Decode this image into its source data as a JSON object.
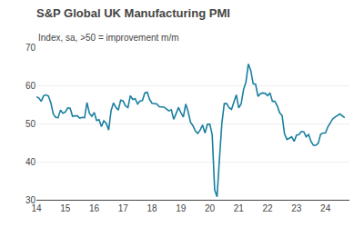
{
  "chart_data": {
    "type": "line",
    "title": "S&P Global UK Manufacturing PMI",
    "subtitle": "Index, sa, >50 = improvement m/m",
    "color": "#1a7fa0",
    "grid": "y",
    "xlim": [
      2014.0,
      2024.83
    ],
    "xticks": [
      {
        "value": 2014,
        "label": "14"
      },
      {
        "value": 2015,
        "label": "15"
      },
      {
        "value": 2016,
        "label": "16"
      },
      {
        "value": 2017,
        "label": "17"
      },
      {
        "value": 2018,
        "label": "18"
      },
      {
        "value": 2019,
        "label": "19"
      },
      {
        "value": 2020,
        "label": "20"
      },
      {
        "value": 2021,
        "label": "21"
      },
      {
        "value": 2022,
        "label": "22"
      },
      {
        "value": 2023,
        "label": "23"
      },
      {
        "value": 2024,
        "label": "24"
      }
    ],
    "ylim": [
      30,
      70
    ],
    "yticks": [
      30,
      40,
      50,
      60,
      70
    ],
    "x": [
      2014.0,
      2014.083,
      2014.167,
      2014.25,
      2014.333,
      2014.417,
      2014.5,
      2014.583,
      2014.667,
      2014.75,
      2014.833,
      2014.917,
      2015.0,
      2015.083,
      2015.167,
      2015.25,
      2015.333,
      2015.417,
      2015.5,
      2015.583,
      2015.667,
      2015.75,
      2015.833,
      2015.917,
      2016.0,
      2016.083,
      2016.167,
      2016.25,
      2016.333,
      2016.417,
      2016.5,
      2016.583,
      2016.667,
      2016.75,
      2016.833,
      2016.917,
      2017.0,
      2017.083,
      2017.167,
      2017.25,
      2017.333,
      2017.417,
      2017.5,
      2017.583,
      2017.667,
      2017.75,
      2017.833,
      2017.917,
      2018.0,
      2018.083,
      2018.167,
      2018.25,
      2018.333,
      2018.417,
      2018.5,
      2018.583,
      2018.667,
      2018.75,
      2018.833,
      2018.917,
      2019.0,
      2019.083,
      2019.167,
      2019.25,
      2019.333,
      2019.417,
      2019.5,
      2019.583,
      2019.667,
      2019.75,
      2019.833,
      2019.917,
      2020.0,
      2020.083,
      2020.167,
      2020.25,
      2020.333,
      2020.417,
      2020.5,
      2020.583,
      2020.667,
      2020.75,
      2020.833,
      2020.917,
      2021.0,
      2021.083,
      2021.167,
      2021.25,
      2021.333,
      2021.417,
      2021.5,
      2021.583,
      2021.667,
      2021.75,
      2021.833,
      2021.917,
      2022.0,
      2022.083,
      2022.167,
      2022.25,
      2022.333,
      2022.417,
      2022.5,
      2022.583,
      2022.667,
      2022.75,
      2022.833,
      2022.917,
      2023.0,
      2023.083,
      2023.167,
      2023.25,
      2023.333,
      2023.417,
      2023.5,
      2023.583,
      2023.667,
      2023.75,
      2023.833,
      2023.917,
      2024.0,
      2024.083,
      2024.167,
      2024.25,
      2024.333,
      2024.417,
      2024.5,
      2024.667
    ],
    "values": [
      57.0,
      56.7,
      55.8,
      57.3,
      57.5,
      57.2,
      55.4,
      52.5,
      51.6,
      51.5,
      53.5,
      52.7,
      53.0,
      54.1,
      54.0,
      51.9,
      52.0,
      52.0,
      51.4,
      51.6,
      51.5,
      55.5,
      52.7,
      51.9,
      52.9,
      50.8,
      51.0,
      49.2,
      50.7,
      50.0,
      48.3,
      53.3,
      55.4,
      54.2,
      53.5,
      56.1,
      55.9,
      54.6,
      54.2,
      57.3,
      56.3,
      56.5,
      55.1,
      55.9,
      56.0,
      58.0,
      58.2,
      56.3,
      55.3,
      55.2,
      55.1,
      54.4,
      54.4,
      54.3,
      53.8,
      53.3,
      53.6,
      51.1,
      52.6,
      54.2,
      52.8,
      51.7,
      55.1,
      53.1,
      50.3,
      49.4,
      48.0,
      47.4,
      48.3,
      49.6,
      47.5,
      49.8,
      49.8,
      47.0,
      32.6,
      30.8,
      40.7,
      50.1,
      55.2,
      55.2,
      54.1,
      53.7,
      55.6,
      57.5,
      54.1,
      55.1,
      58.9,
      60.9,
      65.6,
      63.9,
      60.4,
      60.3,
      57.1,
      57.8,
      58.0,
      57.9,
      57.3,
      58.0,
      55.8,
      55.8,
      54.6,
      52.8,
      52.1,
      47.3,
      45.8,
      46.2,
      46.5,
      45.3,
      47.0,
      47.1,
      47.9,
      47.8,
      46.5,
      47.1,
      45.3,
      44.3,
      44.3,
      44.8,
      47.2,
      47.5,
      47.5,
      49.1,
      50.3,
      51.2,
      51.7,
      52.1,
      52.5,
      51.5
    ]
  }
}
